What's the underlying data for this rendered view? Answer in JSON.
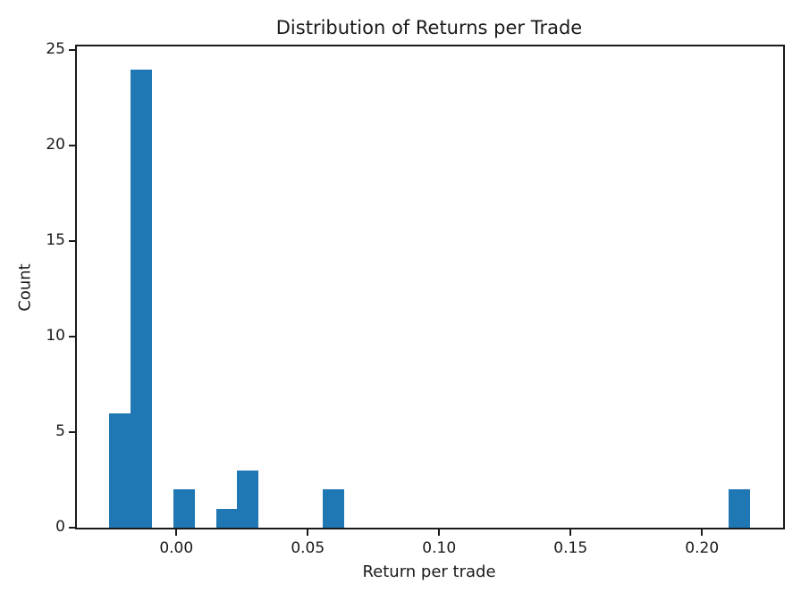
{
  "chart_data": {
    "type": "bar",
    "subtype": "histogram",
    "title": "Distribution of Returns per Trade",
    "xlabel": "Return per trade",
    "ylabel": "Count",
    "bar_color": "#1f77b4",
    "background_color": "#ffffff",
    "axis_color": "#1a1a1a",
    "grid": false,
    "legend": null,
    "bin_start": -0.0256,
    "bin_width": 0.00813,
    "counts": [
      6,
      24,
      0,
      2,
      0,
      1,
      3,
      0,
      0,
      0,
      2,
      0,
      0,
      0,
      0,
      0,
      0,
      0,
      0,
      0,
      0,
      0,
      0,
      0,
      0,
      0,
      0,
      0,
      0,
      2
    ],
    "visible_bars": [
      {
        "x_from": -0.0256,
        "x_to": -0.0175,
        "count": 6
      },
      {
        "x_from": -0.0175,
        "x_to": -0.0093,
        "count": 24
      },
      {
        "x_from": -0.0012,
        "x_to": 0.007,
        "count": 2
      },
      {
        "x_from": 0.0151,
        "x_to": 0.0232,
        "count": 1
      },
      {
        "x_from": 0.0232,
        "x_to": 0.0314,
        "count": 3
      },
      {
        "x_from": 0.0557,
        "x_to": 0.0638,
        "count": 2
      },
      {
        "x_from": 0.2102,
        "x_to": 0.2183,
        "count": 2
      }
    ],
    "xlim": [
      -0.03785,
      0.23088
    ],
    "ylim": [
      0,
      25.2
    ],
    "x_ticks": [
      0.0,
      0.05,
      0.1,
      0.15,
      0.2
    ],
    "x_tick_labels": [
      "0.00",
      "0.05",
      "0.10",
      "0.15",
      "0.20"
    ],
    "y_ticks": [
      0,
      5,
      10,
      15,
      20,
      25
    ],
    "y_tick_labels": [
      "0",
      "5",
      "10",
      "15",
      "20",
      "25"
    ]
  }
}
